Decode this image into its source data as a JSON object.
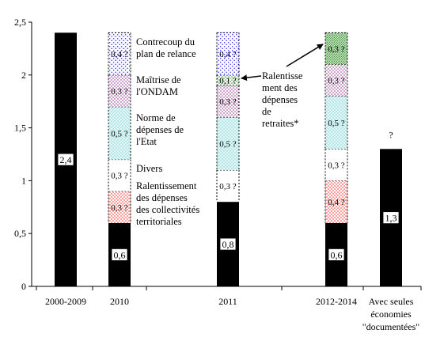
{
  "chart_data": {
    "type": "bar",
    "stacked": true,
    "ylim": [
      0,
      2.5
    ],
    "y_ticks": [
      "0",
      "0,5",
      "1",
      "1,5",
      "2",
      "2,5"
    ],
    "y_tick_values": [
      0,
      0.5,
      1,
      1.5,
      2,
      2.5
    ],
    "categories": [
      "2000-2009",
      "2010",
      "2011",
      "2012-2014",
      "Avec seules économies \"documentées\""
    ],
    "category_label_lines": [
      [
        "2000-2009"
      ],
      [
        "2010"
      ],
      [
        "2011"
      ],
      [
        "2012-2014"
      ],
      [
        "Avec seules",
        "économies",
        "\"documentées\""
      ]
    ],
    "question_mark_label": "?",
    "bars": [
      {
        "category": "2000-2009",
        "segments": [
          {
            "kind": "base",
            "value": 2.4,
            "label": "2,4",
            "pattern": "solid-black"
          }
        ]
      },
      {
        "category": "2010",
        "segments": [
          {
            "kind": "base",
            "value": 0.6,
            "label": "0,6",
            "pattern": "solid-black"
          },
          {
            "kind": "collectivites",
            "value": 0.3,
            "label": "0,3 ?",
            "pattern": "red-dots"
          },
          {
            "kind": "divers",
            "value": 0.3,
            "label": "0,3 ?",
            "pattern": "white"
          },
          {
            "kind": "etat",
            "value": 0.5,
            "label": "0,5 ?",
            "pattern": "cyan-dots"
          },
          {
            "kind": "ondam",
            "value": 0.3,
            "label": "0,3 ?",
            "pattern": "purple-dots"
          },
          {
            "kind": "relance",
            "value": 0.4,
            "label": "0,4 ?",
            "pattern": "blue-dots"
          }
        ]
      },
      {
        "category": "2011",
        "segments": [
          {
            "kind": "base",
            "value": 0.8,
            "label": "0,8",
            "pattern": "solid-black"
          },
          {
            "kind": "divers",
            "value": 0.3,
            "label": "0,3 ?",
            "pattern": "white"
          },
          {
            "kind": "etat",
            "value": 0.5,
            "label": "0,5 ?",
            "pattern": "cyan-dots"
          },
          {
            "kind": "ondam",
            "value": 0.3,
            "label": "0,3 ?",
            "pattern": "purple-dots"
          },
          {
            "kind": "retraites",
            "value": 0.1,
            "label": "0,1 ?",
            "pattern": "green-dots"
          },
          {
            "kind": "relance",
            "value": 0.4,
            "label": "0,4 ?",
            "pattern": "blue-dots"
          }
        ]
      },
      {
        "category": "2012-2014",
        "segments": [
          {
            "kind": "base",
            "value": 0.6,
            "label": "0,6",
            "pattern": "solid-black"
          },
          {
            "kind": "collectivites",
            "value": 0.4,
            "label": "0,4 ?",
            "pattern": "red-dots"
          },
          {
            "kind": "divers",
            "value": 0.3,
            "label": "0,3 ?",
            "pattern": "white"
          },
          {
            "kind": "etat",
            "value": 0.5,
            "label": "0,5 ?",
            "pattern": "cyan-dots"
          },
          {
            "kind": "ondam",
            "value": 0.3,
            "label": "0,3 ?",
            "pattern": "purple-dots"
          },
          {
            "kind": "retraites",
            "value": 0.3,
            "label": "0,3 ?",
            "pattern": "green-dense"
          }
        ]
      },
      {
        "category": "Avec seules économies \"documentées\"",
        "segments": [
          {
            "kind": "base",
            "value": 1.3,
            "label": "1,3",
            "pattern": "solid-black"
          }
        ]
      }
    ],
    "annotations": {
      "relance": [
        "Contrecoup du",
        "plan de relance"
      ],
      "ondam": [
        "Maîtrise de",
        "l'ONDAM"
      ],
      "etat": [
        "Norme de",
        "dépenses de",
        "l'Etat"
      ],
      "divers": [
        "Divers"
      ],
      "collectivites": [
        "Ralentissement",
        "des dépenses",
        "des collectivités",
        "territoriales"
      ],
      "retraites": [
        "Ralentisse",
        "ment des",
        "dépenses",
        "de",
        "retraites*"
      ]
    },
    "colors": {
      "bar": "#000000",
      "blue_dots": "#2a2aff",
      "purple_dots": "#8b2a8b",
      "cyan_fill": "#dff7f7",
      "cyan_dots": "#5fbfc4",
      "red_dots": "#ff1a1a",
      "green_fill": "#d8ecd0",
      "green_dots": "#2e8b2e",
      "axis": "#000000"
    },
    "grid": false,
    "legend": "none"
  }
}
